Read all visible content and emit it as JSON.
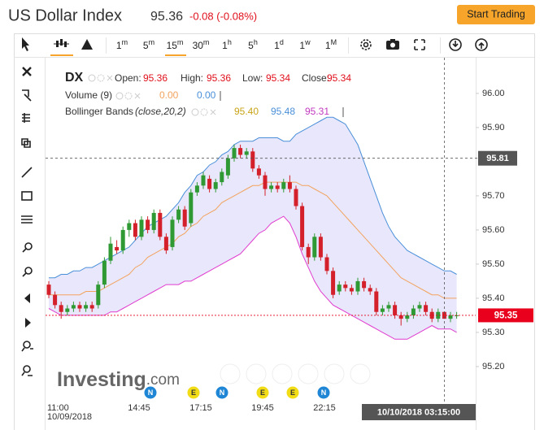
{
  "header": {
    "title": "US Dollar Index",
    "price": 95.36,
    "change": "-0.08 (-0.08%)",
    "button": "Start Trading"
  },
  "toolbar": {
    "intervals": [
      [
        "1",
        "m"
      ],
      [
        "5",
        "m"
      ],
      [
        "15",
        "m"
      ],
      [
        "30",
        "m"
      ],
      [
        "1",
        "h"
      ],
      [
        "5",
        "h"
      ],
      [
        "1",
        "d"
      ],
      [
        "1",
        "w"
      ],
      [
        "1",
        "M"
      ]
    ]
  },
  "chart_data": {
    "type": "candlestick",
    "legend": {
      "symbol": "DX",
      "open_label": "Open:",
      "open": 95.36,
      "high_label": "High:",
      "high": 95.36,
      "low_label": "Low:",
      "low": 95.34,
      "close_label": "Close:",
      "close": 95.34,
      "volume_label": "Volume (9)",
      "volume_values": [
        0,
        0
      ],
      "volume_value_labels": [
        "0.00",
        "0.00"
      ],
      "bb_label": "Bollinger Bands",
      "bb_params": "(close,20,2)",
      "bb_values": [
        95.4,
        95.48,
        95.31
      ],
      "bb_value_labels": [
        "95.40",
        "95.48",
        "95.31"
      ]
    },
    "categories": [
      "11:00",
      null,
      null,
      null,
      null,
      null,
      null,
      null,
      null,
      null,
      null,
      null,
      null,
      null,
      null,
      "14:45",
      null,
      null,
      null,
      null,
      null,
      null,
      null,
      null,
      null,
      "17:15",
      null,
      null,
      null,
      null,
      null,
      null,
      null,
      null,
      null,
      "19:45",
      null,
      null,
      null,
      null,
      null,
      null,
      null,
      null,
      null,
      "22:15",
      null,
      null,
      null,
      null,
      null,
      null,
      null,
      null,
      null,
      null,
      null,
      null,
      null,
      null,
      null,
      null,
      null,
      null,
      null,
      null,
      null
    ],
    "date_label": "10/09/2018",
    "open": [
      95.44,
      95.41,
      95.38,
      95.36,
      95.37,
      95.38,
      95.37,
      95.38,
      95.38,
      95.44,
      95.51,
      95.55,
      95.54,
      95.6,
      95.62,
      95.58,
      95.63,
      95.6,
      95.65,
      95.58,
      95.55,
      95.63,
      95.66,
      95.62,
      95.71,
      95.73,
      95.75,
      95.72,
      95.74,
      95.76,
      95.81,
      95.84,
      95.82,
      95.83,
      95.78,
      95.76,
      95.72,
      95.73,
      95.72,
      95.74,
      95.72,
      95.67,
      95.55,
      95.52,
      95.58,
      95.52,
      95.48,
      95.42,
      95.44,
      95.43,
      95.42,
      95.45,
      95.43,
      95.42,
      95.36,
      95.37,
      95.38,
      95.35,
      95.34,
      95.35,
      95.37,
      95.38,
      95.36,
      95.34,
      95.36,
      95.34,
      95.35
    ],
    "high": [
      95.45,
      95.42,
      95.39,
      95.38,
      95.39,
      95.39,
      95.39,
      95.39,
      95.45,
      95.52,
      95.58,
      95.57,
      95.61,
      95.63,
      95.63,
      95.64,
      95.64,
      95.66,
      95.66,
      95.59,
      95.64,
      95.67,
      95.67,
      95.72,
      95.74,
      95.77,
      95.76,
      95.75,
      95.78,
      95.82,
      95.85,
      95.85,
      95.84,
      95.84,
      95.79,
      95.77,
      95.74,
      95.74,
      95.75,
      95.76,
      95.73,
      95.68,
      95.56,
      95.59,
      95.59,
      95.53,
      95.49,
      95.45,
      95.45,
      95.44,
      95.46,
      95.46,
      95.44,
      95.43,
      95.38,
      95.39,
      95.39,
      95.36,
      95.36,
      95.38,
      95.39,
      95.39,
      95.37,
      95.37,
      95.36,
      95.36,
      95.36
    ],
    "low": [
      95.4,
      95.37,
      95.34,
      95.35,
      95.36,
      95.36,
      95.36,
      95.36,
      95.37,
      95.43,
      95.5,
      95.53,
      95.53,
      95.58,
      95.57,
      95.57,
      95.59,
      95.59,
      95.57,
      95.53,
      95.54,
      95.62,
      95.6,
      95.61,
      95.7,
      95.72,
      95.71,
      95.71,
      95.73,
      95.75,
      95.8,
      95.81,
      95.81,
      95.77,
      95.75,
      95.7,
      95.71,
      95.71,
      95.71,
      95.71,
      95.66,
      95.54,
      95.5,
      95.51,
      95.51,
      95.47,
      95.4,
      95.41,
      95.42,
      95.41,
      95.41,
      95.42,
      95.41,
      95.35,
      95.35,
      95.36,
      95.34,
      95.32,
      95.33,
      95.34,
      95.36,
      95.35,
      95.33,
      95.33,
      95.34,
      95.33,
      95.34
    ],
    "close": [
      95.41,
      95.38,
      95.36,
      95.37,
      95.38,
      95.37,
      95.38,
      95.37,
      95.44,
      95.51,
      95.56,
      95.54,
      95.6,
      95.62,
      95.58,
      95.63,
      95.6,
      95.65,
      95.58,
      95.54,
      95.63,
      95.66,
      95.61,
      95.71,
      95.73,
      95.76,
      95.72,
      95.74,
      95.77,
      95.81,
      95.84,
      95.82,
      95.83,
      95.78,
      95.76,
      95.72,
      95.73,
      95.72,
      95.74,
      95.72,
      95.67,
      95.55,
      95.52,
      95.58,
      95.52,
      95.48,
      95.41,
      95.44,
      95.43,
      95.42,
      95.45,
      95.43,
      95.42,
      95.36,
      95.37,
      95.38,
      95.35,
      95.34,
      95.35,
      95.37,
      95.38,
      95.36,
      95.34,
      95.36,
      95.34,
      95.35,
      95.35
    ],
    "up_color": "#2f9a34",
    "down_color": "#d3202a",
    "upper_band": {
      "color": "#4a90d9",
      "values": [
        95.46,
        95.46,
        95.47,
        95.47,
        95.48,
        95.48,
        95.49,
        95.49,
        95.5,
        95.51,
        95.52,
        95.53,
        95.54,
        95.55,
        95.57,
        95.59,
        95.61,
        95.62,
        95.63,
        95.64,
        95.66,
        95.68,
        95.71,
        95.73,
        95.76,
        95.77,
        95.79,
        95.8,
        95.82,
        95.83,
        95.85,
        95.86,
        95.86,
        95.86,
        95.87,
        95.87,
        95.87,
        95.87,
        95.86,
        95.86,
        95.88,
        95.89,
        95.9,
        95.91,
        95.92,
        95.93,
        95.93,
        95.92,
        95.91,
        95.88,
        95.85,
        95.8,
        95.75,
        95.7,
        95.65,
        95.61,
        95.58,
        95.56,
        95.54,
        95.53,
        95.52,
        95.51,
        95.5,
        95.49,
        95.48,
        95.48,
        95.47
      ]
    },
    "middle_band": {
      "color": "#f2a35e",
      "values": [
        95.41,
        95.41,
        95.41,
        95.41,
        95.41,
        95.41,
        95.42,
        95.42,
        95.42,
        95.43,
        95.44,
        95.45,
        95.46,
        95.47,
        95.49,
        95.5,
        95.52,
        95.53,
        95.54,
        95.55,
        95.56,
        95.58,
        95.59,
        95.61,
        95.62,
        95.64,
        95.65,
        95.66,
        95.68,
        95.69,
        95.7,
        95.71,
        95.72,
        95.73,
        95.73,
        95.74,
        95.74,
        95.74,
        95.74,
        95.74,
        95.74,
        95.73,
        95.73,
        95.72,
        95.71,
        95.7,
        95.68,
        95.66,
        95.64,
        95.62,
        95.6,
        95.58,
        95.56,
        95.54,
        95.52,
        95.5,
        95.48,
        95.46,
        95.45,
        95.44,
        95.43,
        95.42,
        95.41,
        95.41,
        95.4,
        95.4,
        95.4
      ]
    },
    "lower_band": {
      "color": "#e03ccf",
      "values": [
        95.37,
        95.36,
        95.35,
        95.35,
        95.35,
        95.35,
        95.35,
        95.35,
        95.35,
        95.35,
        95.36,
        95.36,
        95.37,
        95.38,
        95.39,
        95.4,
        95.41,
        95.42,
        95.43,
        95.44,
        95.44,
        95.44,
        95.45,
        95.45,
        95.46,
        95.47,
        95.48,
        95.49,
        95.5,
        95.51,
        95.52,
        95.53,
        95.55,
        95.57,
        95.59,
        95.6,
        95.62,
        95.63,
        95.64,
        95.62,
        95.58,
        95.53,
        95.49,
        95.45,
        95.42,
        95.4,
        95.38,
        95.37,
        95.36,
        95.35,
        95.34,
        95.33,
        95.32,
        95.31,
        95.3,
        95.29,
        95.28,
        95.28,
        95.28,
        95.29,
        95.3,
        95.31,
        95.32,
        95.31,
        95.31,
        95.31,
        95.3
      ]
    },
    "band_fill": "#e9e7fb",
    "ylim": [
      95.107,
      96.095
    ],
    "yticks": [
      {
        "value": 95.2,
        "label": "95.20"
      },
      {
        "value": 95.3,
        "label": "95.30"
      },
      {
        "value": 95.4,
        "label": "95.40"
      },
      {
        "value": 95.5,
        "label": "95.50"
      },
      {
        "value": 95.6,
        "label": "95.60"
      },
      {
        "value": 95.7,
        "label": "95.70"
      },
      {
        "value": 95.9,
        "label": "95.90"
      },
      {
        "value": 96,
        "label": "96.00"
      }
    ],
    "last_price": 95.35,
    "crosshair": {
      "y": 95.81,
      "x_label": "10/10/2018 03:15:00"
    },
    "badges": [
      {
        "text": "N",
        "color": "#1f86d6"
      },
      {
        "text": "E",
        "color": "#f2dc16"
      },
      {
        "text": "N",
        "color": "#1f86d6"
      },
      {
        "text": "E",
        "color": "#f2dc16"
      },
      {
        "text": "E",
        "color": "#f2dc16"
      },
      {
        "text": "N",
        "color": "#1f86d6"
      }
    ],
    "watermark": [
      "Investing",
      ".com"
    ]
  }
}
